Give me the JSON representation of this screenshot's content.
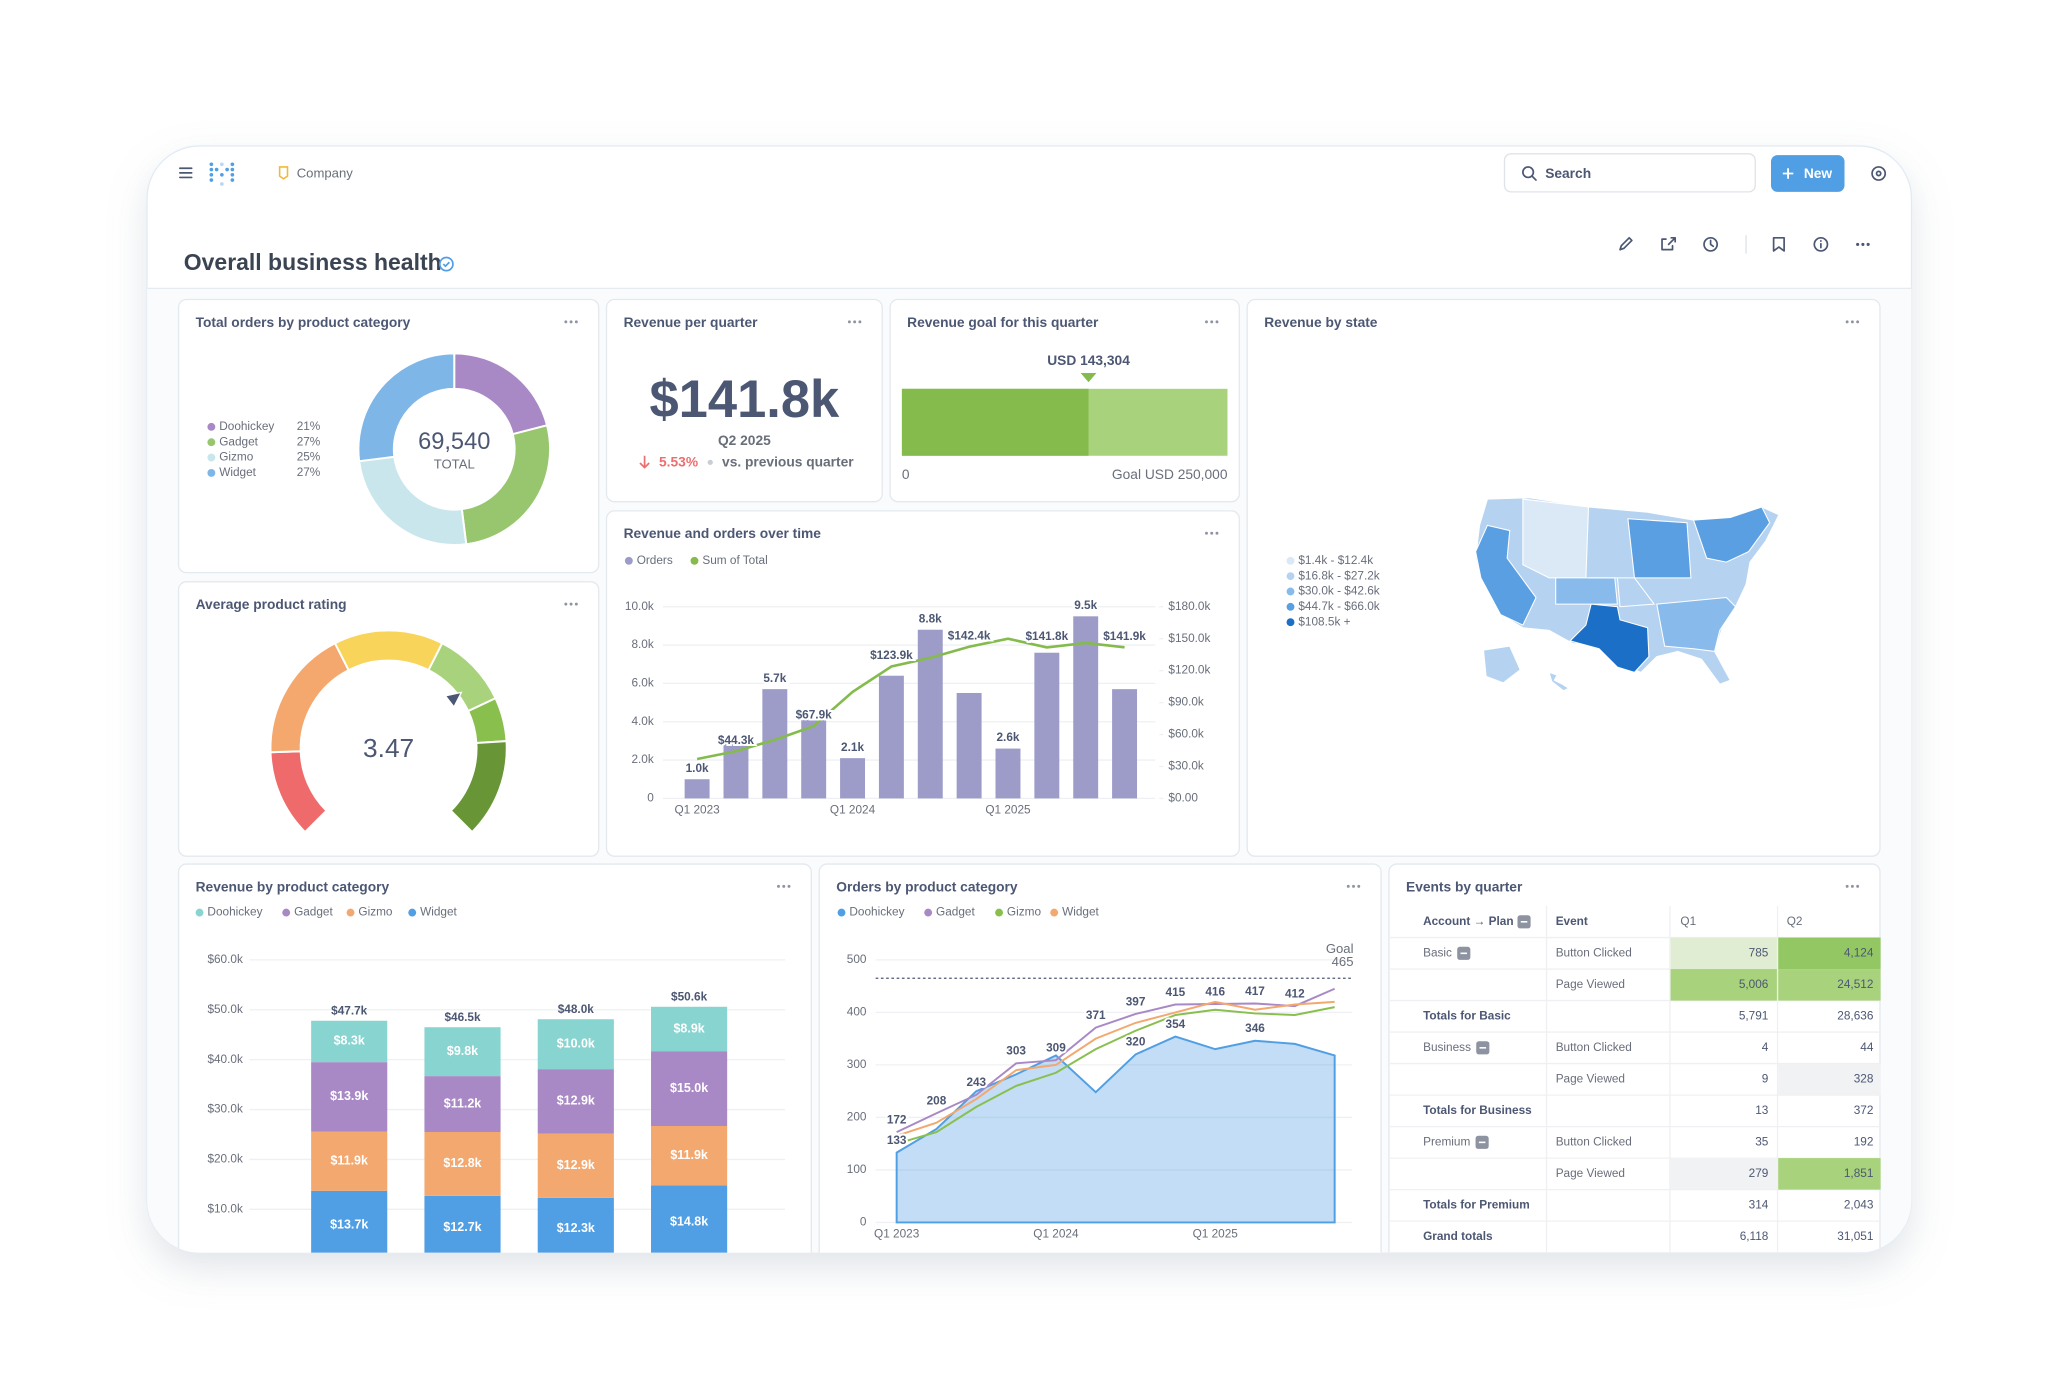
{
  "header": {
    "workspace": "Company",
    "search": "Search",
    "new_button": "New",
    "title": "Overall business health"
  },
  "chart_data": [
    {
      "type": "pie",
      "title": "Total orders by product category",
      "categories": [
        "Doohickey",
        "Gadget",
        "Gizmo",
        "Widget"
      ],
      "values": [
        21,
        27,
        25,
        27
      ],
      "value_labels": [
        "21%",
        "27%",
        "25%",
        "27%"
      ],
      "colors": [
        "#a989c5",
        "#98c66e",
        "#c9e6ec",
        "#7fb6e8"
      ],
      "center_value": "69,540",
      "center_caption": "TOTAL"
    },
    {
      "type": "scalar",
      "title": "Revenue per quarter",
      "value": "$141.8k",
      "period": "Q2 2025",
      "change": "5.53%",
      "comparison": "vs. previous quarter"
    },
    {
      "type": "progress",
      "title": "Revenue goal for this quarter",
      "value": 143304,
      "value_label": "USD 143,304",
      "goal": 250000,
      "goal_label": "Goal USD 250,000",
      "xlim": [
        0,
        250000
      ],
      "xticks": [
        0
      ],
      "color": "#84bb4c",
      "goal_color": "#a9d27d"
    },
    {
      "type": "map",
      "title": "Revenue by state",
      "legend": [
        {
          "label": "$1.4k - $12.4k",
          "color": "#dbe9f7"
        },
        {
          "label": "$16.8k - $27.2k",
          "color": "#b5d3f1"
        },
        {
          "label": "$30.0k - $42.6k",
          "color": "#88bbeb"
        },
        {
          "label": "$44.7k - $66.0k",
          "color": "#5a9fe2"
        },
        {
          "label": "$108.5k +",
          "color": "#1b6fc6"
        }
      ]
    },
    {
      "type": "combo",
      "title": "Revenue and orders over time",
      "categories": [
        "Q1 2023",
        null,
        null,
        null,
        "Q1 2024",
        null,
        null,
        null,
        "Q1 2025",
        null,
        null,
        null
      ],
      "series": [
        {
          "name": "Orders",
          "type": "bar",
          "color": "#9d9cc9",
          "values": [
            1000,
            2900,
            5700,
            4200,
            2100,
            6400,
            8800,
            5500,
            2600,
            7600,
            9500,
            5700
          ],
          "value_labels": [
            "1.0k",
            null,
            "5.7k",
            null,
            "2.1k",
            null,
            "8.8k",
            null,
            "2.6k",
            null,
            "9.5k",
            null
          ]
        },
        {
          "name": "Sum of Total",
          "type": "line",
          "axis": "y2",
          "color": "#84bb4c",
          "values": [
            37000,
            44300,
            55000,
            67900,
            100000,
            123900,
            132000,
            142400,
            150000,
            141800,
            146000,
            141900
          ],
          "value_labels": [
            null,
            "$44.3k",
            null,
            "$67.9k",
            null,
            "$123.9k",
            null,
            "$142.4k",
            null,
            "$141.8k",
            null,
            "$141.9k"
          ]
        }
      ],
      "ylim": [
        0,
        10000
      ],
      "yticks": [
        0,
        {
          "value": 2000,
          "label": "2.0k"
        },
        {
          "value": 4000,
          "label": "4.0k"
        },
        {
          "value": 6000,
          "label": "6.0k"
        },
        {
          "value": 8000,
          "label": "8.0k"
        },
        {
          "value": 10000,
          "label": "10.0k"
        }
      ],
      "y2lim": [
        0,
        180000
      ],
      "y2ticks": [
        {
          "value": 0,
          "label": "$0.00"
        },
        {
          "value": 30000,
          "label": "$30.0k"
        },
        {
          "value": 60000,
          "label": "$60.0k"
        },
        {
          "value": 90000,
          "label": "$90.0k"
        },
        {
          "value": 120000,
          "label": "$120.0k"
        },
        {
          "value": 150000,
          "label": "$150.0k"
        },
        {
          "value": 180000,
          "label": "$180.0k"
        }
      ],
      "grid": true
    },
    {
      "type": "gauge",
      "title": "Average product rating",
      "value": 3.47,
      "segments": [
        {
          "min": 0,
          "max": 0.8,
          "color": "#ef6b6b"
        },
        {
          "min": 0.8,
          "max": 2,
          "color": "#f4a86d"
        },
        {
          "min": 2,
          "max": 3,
          "color": "#f8d55a"
        },
        {
          "min": 3,
          "max": 3.7,
          "color": "#a8d27b"
        },
        {
          "min": 3.7,
          "max": 4.1,
          "color": "#88bf4d"
        },
        {
          "min": 4.1,
          "max": 5,
          "color": "#689636"
        }
      ]
    },
    {
      "type": "bar",
      "stacked": true,
      "title": "Revenue by product category",
      "categories": [
        null,
        null,
        null,
        null
      ],
      "series": [
        {
          "name": "Doohickey",
          "color": "#88d4d0",
          "values": [
            8300,
            9800,
            10000,
            8900
          ],
          "value_labels": [
            "$8.3k",
            "$9.8k",
            "$10.0k",
            "$8.9k"
          ]
        },
        {
          "name": "Gadget",
          "color": "#a989c5",
          "values": [
            13900,
            11200,
            12900,
            15000
          ],
          "value_labels": [
            "$13.9k",
            "$11.2k",
            "$12.9k",
            "$15.0k"
          ]
        },
        {
          "name": "Gizmo",
          "color": "#f2a86f",
          "values": [
            11900,
            12800,
            12900,
            11900
          ],
          "value_labels": [
            "$11.9k",
            "$12.8k",
            "$12.9k",
            "$11.9k"
          ]
        },
        {
          "name": "Widget",
          "color": "#509ee3",
          "values": [
            13700,
            12700,
            12300,
            14800
          ],
          "value_labels": [
            "$13.7k",
            "$12.7k",
            "$12.3k",
            "$14.8k"
          ]
        }
      ],
      "total_labels": [
        "$47.7k",
        "$46.5k",
        "$48.0k",
        "$50.6k"
      ],
      "ylim": [
        0,
        60000
      ],
      "yticks": [
        {
          "value": 10000,
          "label": "$10.0k"
        },
        {
          "value": 20000,
          "label": "$20.0k"
        },
        {
          "value": 30000,
          "label": "$30.0k"
        },
        {
          "value": 40000,
          "label": "$40.0k"
        },
        {
          "value": 50000,
          "label": "$50.0k"
        },
        {
          "value": 60000,
          "label": "$60.0k"
        }
      ],
      "grid": true
    },
    {
      "type": "line",
      "title": "Orders by product category",
      "categories": [
        "Q1 2023",
        null,
        null,
        null,
        "Q1 2024",
        null,
        null,
        null,
        "Q1 2025",
        null,
        null,
        null
      ],
      "series": [
        {
          "name": "Doohickey",
          "type": "area",
          "color": "#509ee3",
          "values": [
            133,
            178,
            250,
            282,
            318,
            248,
            320,
            354,
            330,
            346,
            340,
            318
          ],
          "value_labels": [
            "133",
            null,
            null,
            null,
            null,
            null,
            "320",
            "354",
            null,
            "346",
            null,
            null
          ]
        },
        {
          "name": "Gadget",
          "type": "line",
          "color": "#a989c5",
          "values": [
            172,
            208,
            243,
            303,
            309,
            371,
            397,
            415,
            416,
            417,
            412,
            445
          ],
          "value_labels": [
            "172",
            "208",
            "243",
            "303",
            "309",
            "371",
            "397",
            "415",
            "416",
            "417",
            "412",
            null
          ]
        },
        {
          "name": "Gizmo",
          "type": "line",
          "color": "#88bf4d",
          "values": [
            150,
            172,
            220,
            260,
            285,
            330,
            365,
            395,
            405,
            398,
            395,
            410
          ]
        },
        {
          "name": "Widget",
          "type": "line",
          "color": "#f2a86f",
          "values": [
            165,
            190,
            235,
            290,
            300,
            350,
            380,
            400,
            420,
            405,
            415,
            420
          ]
        }
      ],
      "goal": 465,
      "goal_label": "Goal",
      "ylim": [
        0,
        500
      ],
      "yticks": [
        0,
        100,
        200,
        300,
        400,
        500
      ],
      "grid": true
    }
  ],
  "table": {
    "title": "Events by quarter",
    "columns": [
      "Account → Plan",
      "Event",
      "Q1",
      "Q2"
    ],
    "rows": [
      {
        "plan": "Basic",
        "event": "Button Clicked",
        "q1": "785",
        "q2": "4,124",
        "q1_color": "#e0edd3",
        "q2_color": "#93c764"
      },
      {
        "event": "Page Viewed",
        "q1": "5,006",
        "q2": "24,512",
        "q1_color": "#a8d27b",
        "q2_color": "#a8d27b"
      },
      {
        "total": "Totals for Basic",
        "q1": "5,791",
        "q2": "28,636"
      },
      {
        "plan": "Business",
        "event": "Button Clicked",
        "q1": "4",
        "q2": "44"
      },
      {
        "event": "Page Viewed",
        "q1": "9",
        "q2": "328",
        "q2_color": "#f0f2f4"
      },
      {
        "total": "Totals for Business",
        "q1": "13",
        "q2": "372"
      },
      {
        "plan": "Premium",
        "event": "Button Clicked",
        "q1": "35",
        "q2": "192"
      },
      {
        "event": "Page Viewed",
        "q1": "279",
        "q2": "1,851",
        "q1_color": "#f0f2f4",
        "q2_color": "#a8d27b"
      },
      {
        "total": "Totals for Premium",
        "q1": "314",
        "q2": "2,043"
      },
      {
        "total": "Grand totals",
        "q1": "6,118",
        "q2": "31,051"
      }
    ]
  }
}
